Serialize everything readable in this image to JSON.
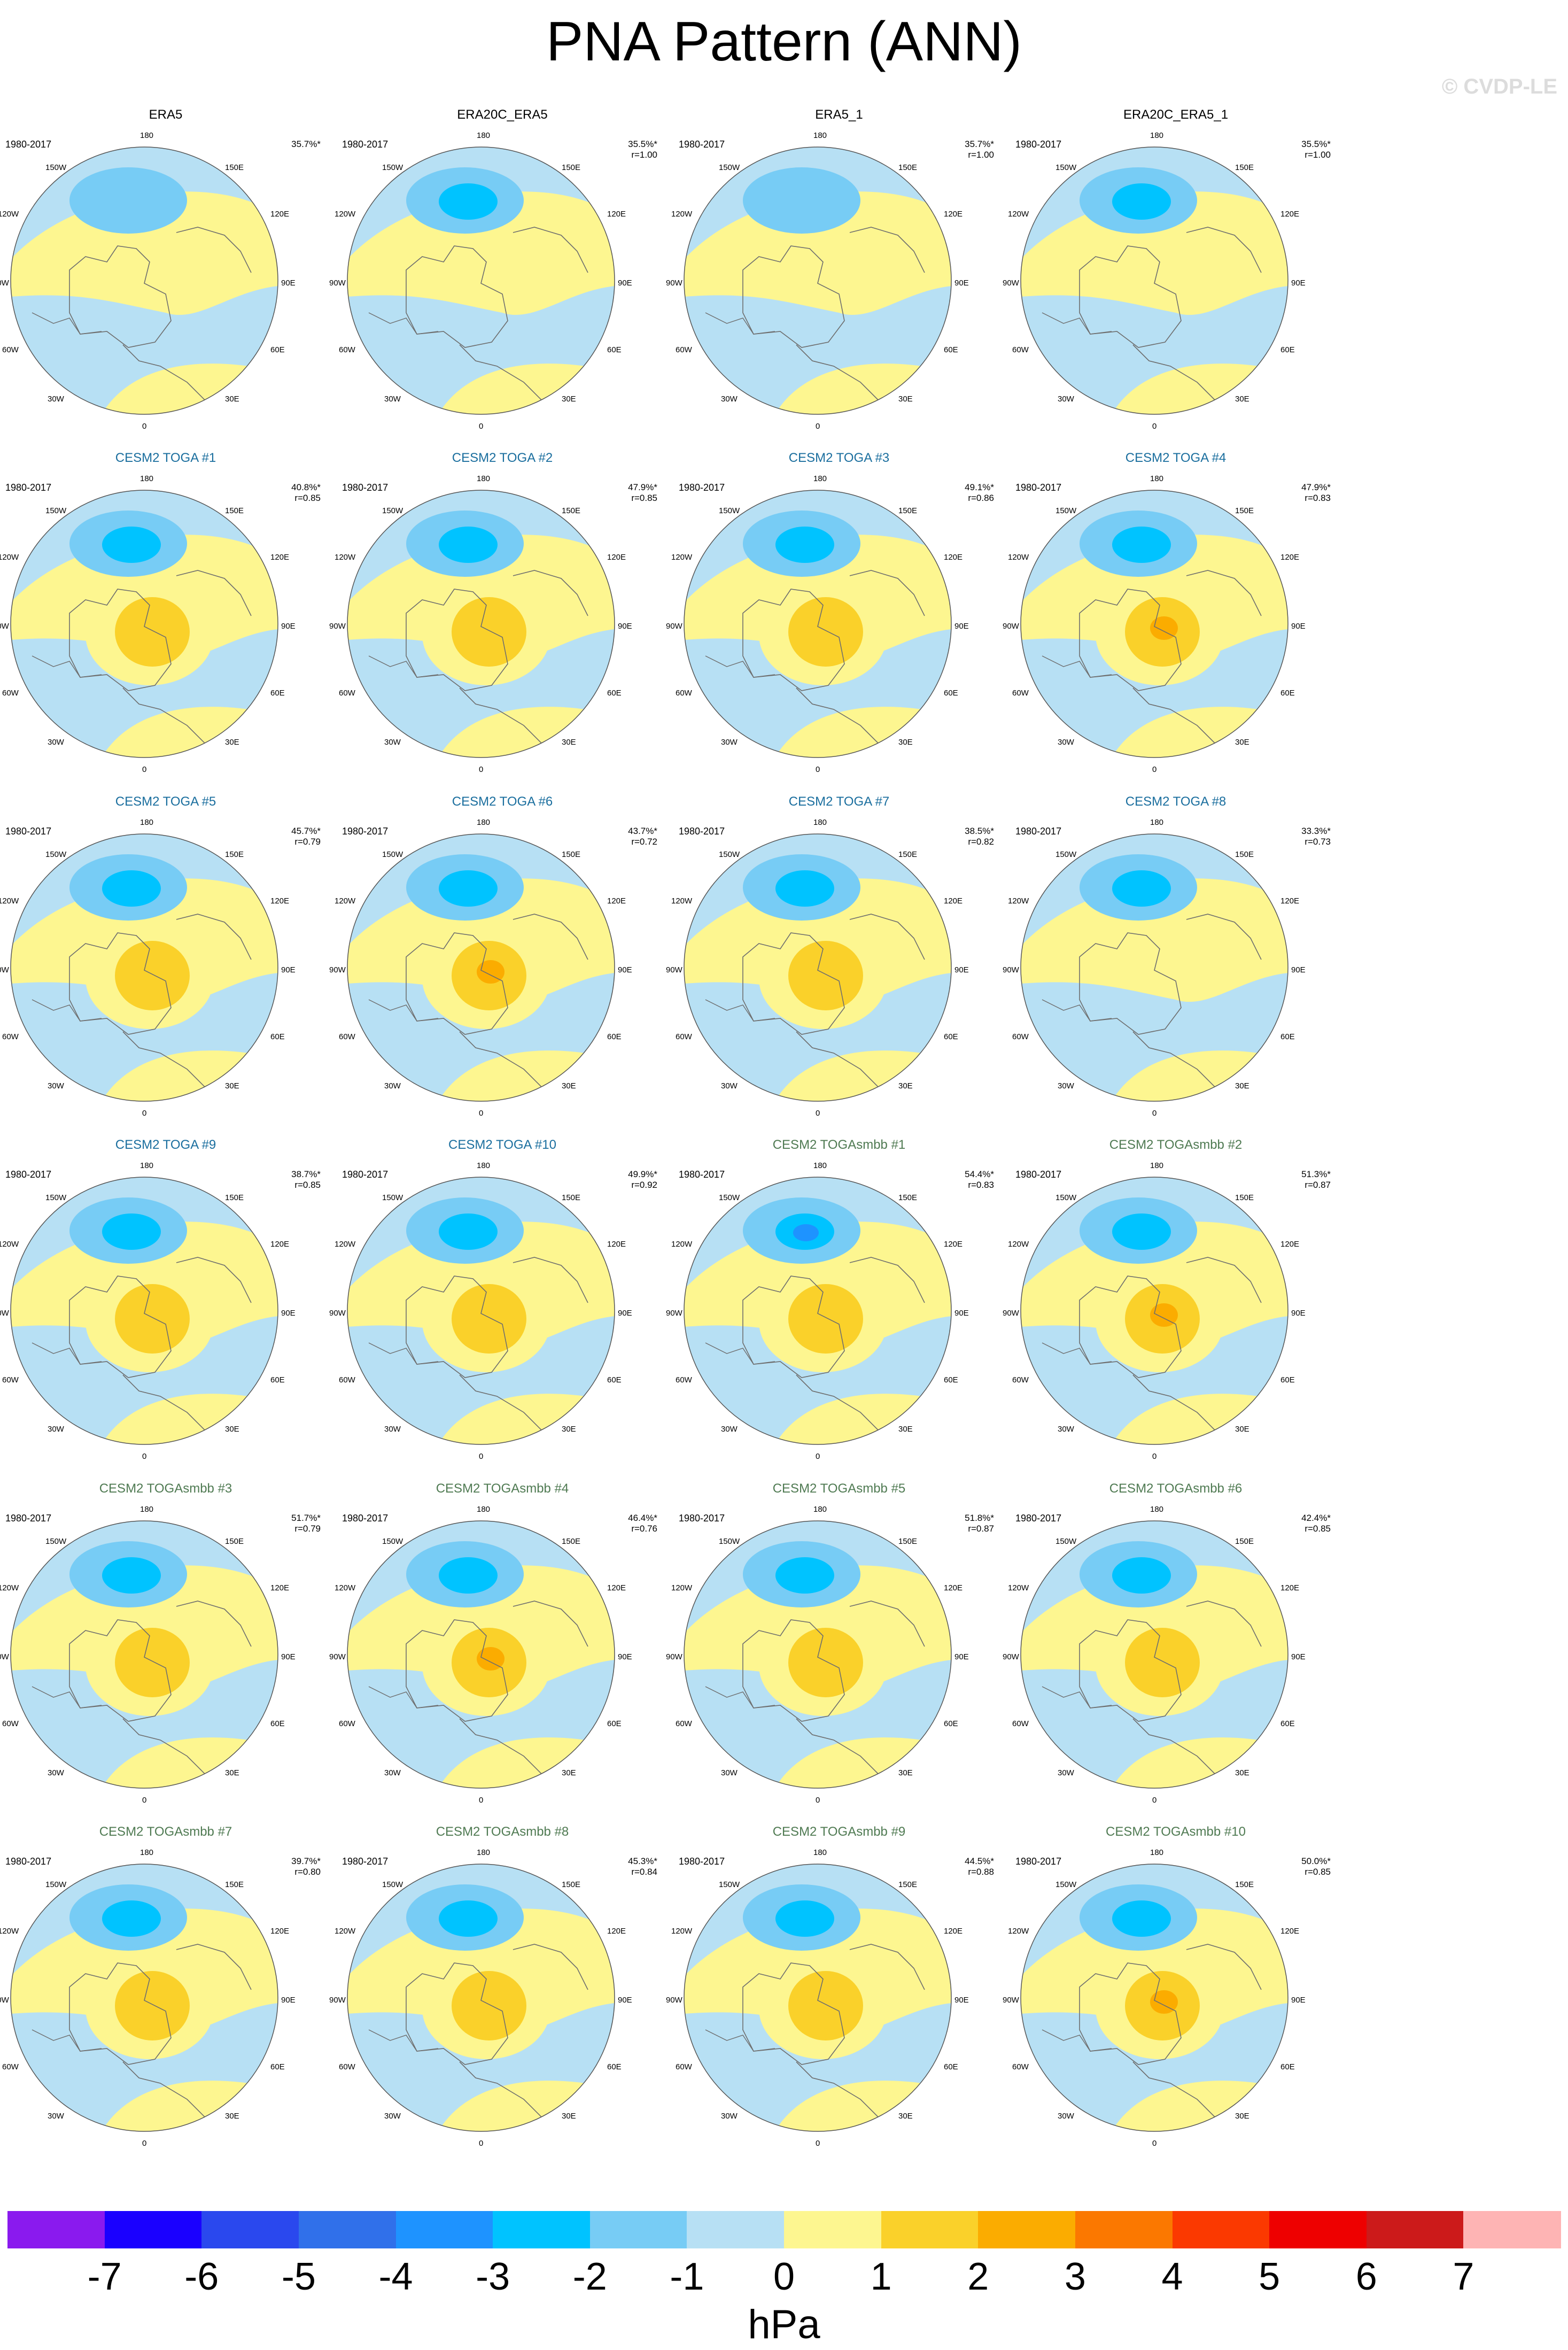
{
  "title": "PNA Pattern (ANN)",
  "watermark": "© CVDP-LE",
  "period": "1980-2017",
  "colors": {
    "obs_title": "#000000",
    "toga_title": "#1a6e9e",
    "togasmbb_title": "#4f7a52",
    "land_outline": "#6e6e6e"
  },
  "lon_labels": [
    "180",
    "150W",
    "150E",
    "120W",
    "120E",
    "90W",
    "90E",
    "60W",
    "60E",
    "30W",
    "30E",
    "0"
  ],
  "panels": [
    {
      "title": "ERA5",
      "group": "obs",
      "pct": "35.7%*",
      "r": "",
      "pattern": {
        "neg": 1,
        "pos": 0
      }
    },
    {
      "title": "ERA20C_ERA5",
      "group": "obs",
      "pct": "35.5%*",
      "r": "r=1.00",
      "pattern": {
        "neg": 2,
        "pos": 0
      }
    },
    {
      "title": "ERA5_1",
      "group": "obs",
      "pct": "35.7%*",
      "r": "r=1.00",
      "pattern": {
        "neg": 1,
        "pos": 0
      }
    },
    {
      "title": "ERA20C_ERA5_1",
      "group": "obs",
      "pct": "35.5%*",
      "r": "r=1.00",
      "pattern": {
        "neg": 2,
        "pos": 0
      }
    },
    {
      "title": "CESM2 TOGA #1",
      "group": "toga",
      "pct": "40.8%*",
      "r": "r=0.85",
      "pattern": {
        "neg": 2,
        "pos": 2
      }
    },
    {
      "title": "CESM2 TOGA #2",
      "group": "toga",
      "pct": "47.9%*",
      "r": "r=0.85",
      "pattern": {
        "neg": 2,
        "pos": 2
      }
    },
    {
      "title": "CESM2 TOGA #3",
      "group": "toga",
      "pct": "49.1%*",
      "r": "r=0.86",
      "pattern": {
        "neg": 2,
        "pos": 2
      }
    },
    {
      "title": "CESM2 TOGA #4",
      "group": "toga",
      "pct": "47.9%*",
      "r": "r=0.83",
      "pattern": {
        "neg": 2,
        "pos": 3
      }
    },
    {
      "title": "CESM2 TOGA #5",
      "group": "toga",
      "pct": "45.7%*",
      "r": "r=0.79",
      "pattern": {
        "neg": 2,
        "pos": 2
      }
    },
    {
      "title": "CESM2 TOGA #6",
      "group": "toga",
      "pct": "43.7%*",
      "r": "r=0.72",
      "pattern": {
        "neg": 2,
        "pos": 3
      }
    },
    {
      "title": "CESM2 TOGA #7",
      "group": "toga",
      "pct": "38.5%*",
      "r": "r=0.82",
      "pattern": {
        "neg": 2,
        "pos": 2
      }
    },
    {
      "title": "CESM2 TOGA #8",
      "group": "toga",
      "pct": "33.3%*",
      "r": "r=0.73",
      "pattern": {
        "neg": 2,
        "pos": 0
      }
    },
    {
      "title": "CESM2 TOGA #9",
      "group": "toga",
      "pct": "38.7%*",
      "r": "r=0.85",
      "pattern": {
        "neg": 2,
        "pos": 2
      }
    },
    {
      "title": "CESM2 TOGA #10",
      "group": "toga",
      "pct": "49.9%*",
      "r": "r=0.92",
      "pattern": {
        "neg": 2,
        "pos": 2
      }
    },
    {
      "title": "CESM2 TOGAsmbb #1",
      "group": "togasmbb",
      "pct": "54.4%*",
      "r": "r=0.83",
      "pattern": {
        "neg": 3,
        "pos": 2
      }
    },
    {
      "title": "CESM2 TOGAsmbb #2",
      "group": "togasmbb",
      "pct": "51.3%*",
      "r": "r=0.87",
      "pattern": {
        "neg": 2,
        "pos": 3
      }
    },
    {
      "title": "CESM2 TOGAsmbb #3",
      "group": "togasmbb",
      "pct": "51.7%*",
      "r": "r=0.79",
      "pattern": {
        "neg": 2,
        "pos": 2
      }
    },
    {
      "title": "CESM2 TOGAsmbb #4",
      "group": "togasmbb",
      "pct": "46.4%*",
      "r": "r=0.76",
      "pattern": {
        "neg": 2,
        "pos": 3
      }
    },
    {
      "title": "CESM2 TOGAsmbb #5",
      "group": "togasmbb",
      "pct": "51.8%*",
      "r": "r=0.87",
      "pattern": {
        "neg": 2,
        "pos": 2
      }
    },
    {
      "title": "CESM2 TOGAsmbb #6",
      "group": "togasmbb",
      "pct": "42.4%*",
      "r": "r=0.85",
      "pattern": {
        "neg": 2,
        "pos": 2
      }
    },
    {
      "title": "CESM2 TOGAsmbb #7",
      "group": "togasmbb",
      "pct": "39.7%*",
      "r": "r=0.80",
      "pattern": {
        "neg": 2,
        "pos": 2
      }
    },
    {
      "title": "CESM2 TOGAsmbb #8",
      "group": "togasmbb",
      "pct": "45.3%*",
      "r": "r=0.84",
      "pattern": {
        "neg": 2,
        "pos": 2
      }
    },
    {
      "title": "CESM2 TOGAsmbb #9",
      "group": "togasmbb",
      "pct": "44.5%*",
      "r": "r=0.88",
      "pattern": {
        "neg": 2,
        "pos": 2
      }
    },
    {
      "title": "CESM2 TOGAsmbb #10",
      "group": "togasmbb",
      "pct": "50.0%*",
      "r": "r=0.85",
      "pattern": {
        "neg": 2,
        "pos": 3
      }
    }
  ],
  "colorbar": {
    "unit": "hPa",
    "ticks": [
      "-7",
      "-6",
      "-5",
      "-4",
      "-3",
      "-2",
      "-1",
      "0",
      "1",
      "2",
      "3",
      "4",
      "5",
      "6",
      "7"
    ],
    "colors": [
      "#8a1aee",
      "#1a00ff",
      "#2a48ee",
      "#3070ea",
      "#1e93ff",
      "#00c3ff",
      "#77ccf5",
      "#b7e0f4",
      "#fdf690",
      "#fad12a",
      "#fbac00",
      "#fb7800",
      "#fb3900",
      "#ee0000",
      "#cc1a1a",
      "#feb4b4"
    ]
  }
}
